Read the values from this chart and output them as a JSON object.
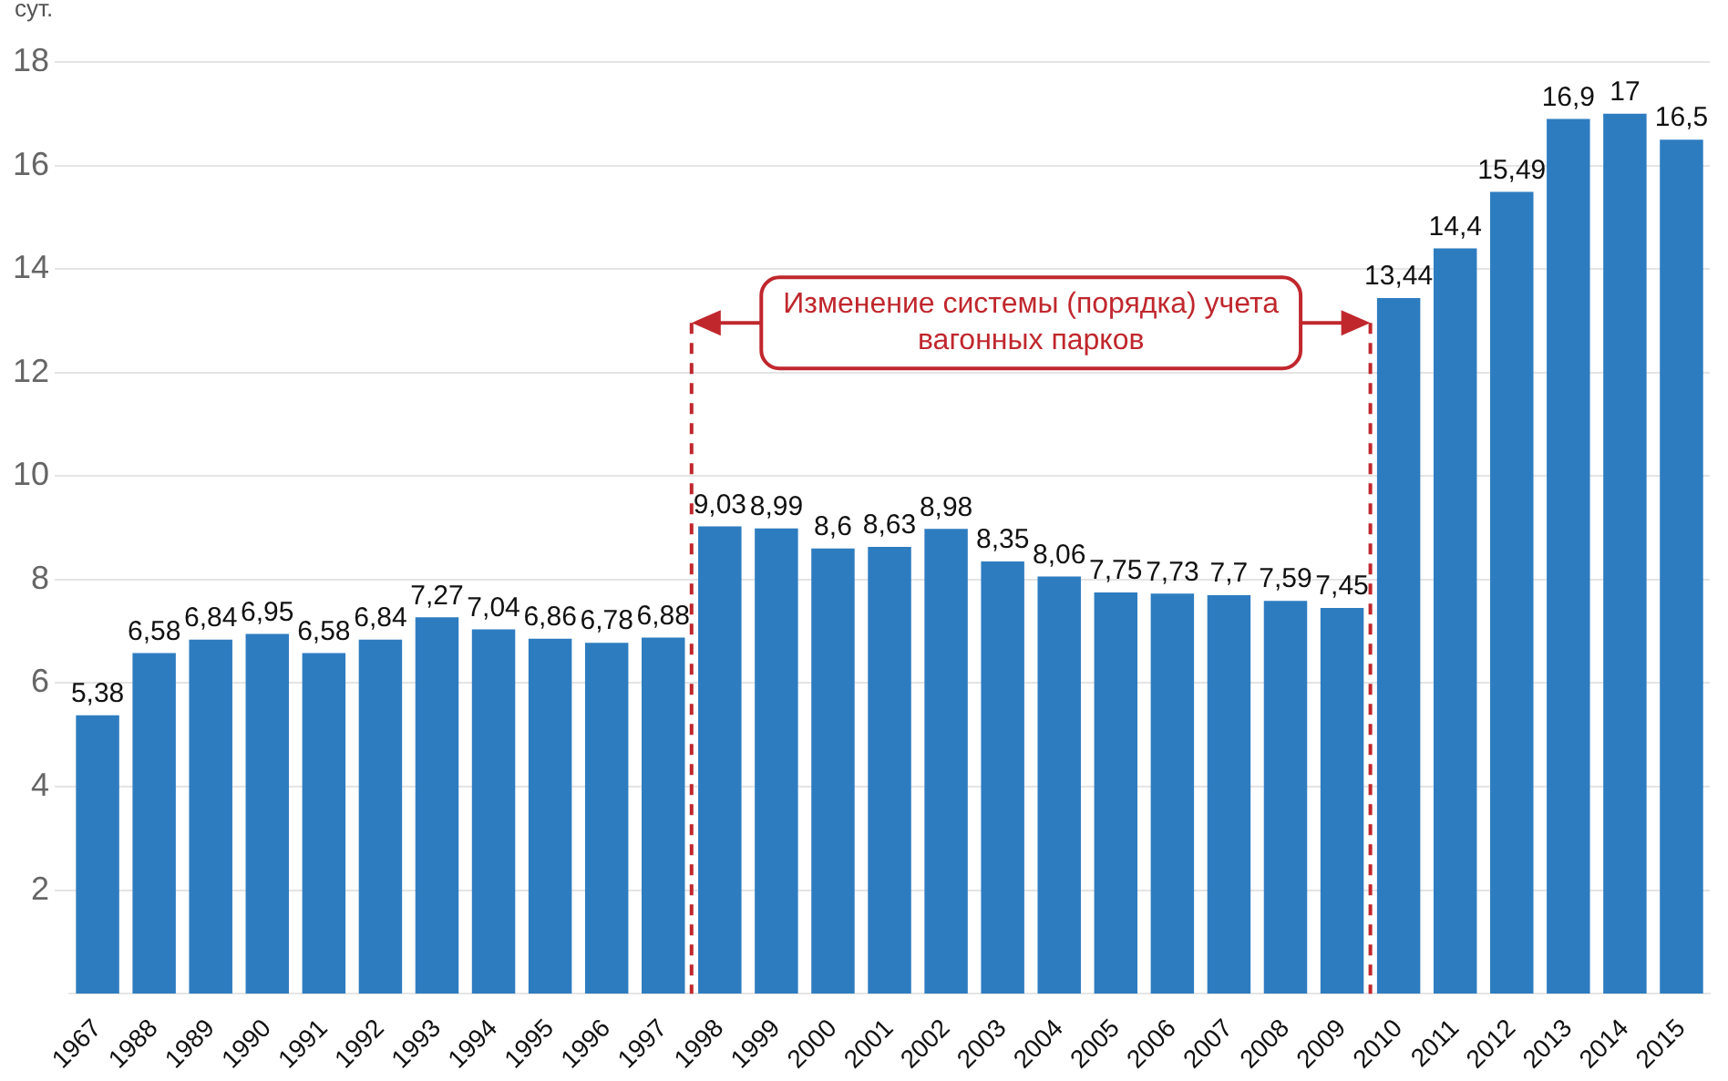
{
  "chart_data": {
    "type": "bar",
    "ylabel": "сут.",
    "categories": [
      "1967",
      "1988",
      "1989",
      "1990",
      "1991",
      "1992",
      "1993",
      "1994",
      "1995",
      "1996",
      "1997",
      "1998",
      "1999",
      "2000",
      "2001",
      "2002",
      "2003",
      "2004",
      "2005",
      "2006",
      "2007",
      "2008",
      "2009",
      "2010",
      "2011",
      "2012",
      "2013",
      "2014",
      "2015"
    ],
    "values": [
      5.38,
      6.58,
      6.84,
      6.95,
      6.58,
      6.84,
      7.27,
      7.04,
      6.86,
      6.78,
      6.88,
      9.03,
      8.99,
      8.6,
      8.63,
      8.98,
      8.35,
      8.06,
      7.75,
      7.73,
      7.7,
      7.59,
      7.45,
      13.44,
      14.4,
      15.49,
      16.9,
      17,
      16.5
    ],
    "value_labels": [
      "5,38",
      "6,58",
      "6,84",
      "6,95",
      "6,58",
      "6,84",
      "7,27",
      "7,04",
      "6,86",
      "6,78",
      "6,88",
      "9,03",
      "8,99",
      "8,6",
      "8,63",
      "8,98",
      "8,35",
      "8,06",
      "7,75",
      "7,73",
      "7,7",
      "7,59",
      "7,45",
      "13,44",
      "14,4",
      "15,49",
      "16,9",
      "17",
      "16,5"
    ],
    "color": "#2e7cc0",
    "ylim": [
      0,
      18
    ],
    "yticks": [
      2,
      4,
      6,
      8,
      10,
      12,
      14,
      16,
      18
    ],
    "grid": "y",
    "bands": [
      {
        "axis": "x",
        "from": "1998",
        "to": "2009",
        "label": "Изменение системы (порядка) учета вагонных парков",
        "color": "#c0272d"
      }
    ]
  }
}
